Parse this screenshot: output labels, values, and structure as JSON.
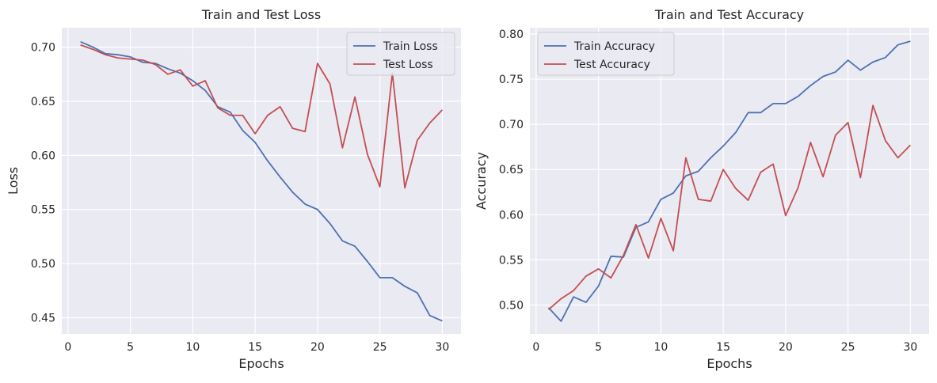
{
  "chart_data": [
    {
      "type": "line",
      "title": "Train and Test Loss",
      "xlabel": "Epochs",
      "ylabel": "Loss",
      "xlim": [
        -0.5,
        31.5
      ],
      "ylim": [
        0.435,
        0.718
      ],
      "xticks": [
        0,
        5,
        10,
        15,
        20,
        25,
        30
      ],
      "yticks": [
        0.45,
        0.5,
        0.55,
        0.6,
        0.65,
        0.7
      ],
      "x": [
        1,
        2,
        3,
        4,
        5,
        6,
        7,
        8,
        9,
        10,
        11,
        12,
        13,
        14,
        15,
        16,
        17,
        18,
        19,
        20,
        21,
        22,
        23,
        24,
        25,
        26,
        27,
        28,
        29,
        30
      ],
      "legend_position": "top-right",
      "series": [
        {
          "name": "Train Loss",
          "color": "#4c72b0",
          "values": [
            0.705,
            0.7,
            0.694,
            0.693,
            0.691,
            0.686,
            0.685,
            0.68,
            0.676,
            0.669,
            0.66,
            0.645,
            0.64,
            0.623,
            0.612,
            0.595,
            0.58,
            0.566,
            0.555,
            0.55,
            0.537,
            0.521,
            0.516,
            0.502,
            0.487,
            0.487,
            0.479,
            0.473,
            0.452,
            0.447
          ]
        },
        {
          "name": "Test Loss",
          "color": "#c44e52",
          "values": [
            0.702,
            0.698,
            0.693,
            0.69,
            0.689,
            0.688,
            0.684,
            0.675,
            0.679,
            0.664,
            0.669,
            0.644,
            0.637,
            0.637,
            0.62,
            0.637,
            0.645,
            0.625,
            0.622,
            0.685,
            0.666,
            0.607,
            0.654,
            0.601,
            0.571,
            0.676,
            0.57,
            0.614,
            0.63,
            0.642
          ]
        }
      ]
    },
    {
      "type": "line",
      "title": "Train and Test Accuracy",
      "xlabel": "Epochs",
      "ylabel": "Accuracy",
      "xlim": [
        -0.5,
        31.5
      ],
      "ylim": [
        0.468,
        0.807
      ],
      "xticks": [
        0,
        5,
        10,
        15,
        20,
        25,
        30
      ],
      "yticks": [
        0.5,
        0.55,
        0.6,
        0.65,
        0.7,
        0.75,
        0.8
      ],
      "x": [
        1,
        2,
        3,
        4,
        5,
        6,
        7,
        8,
        9,
        10,
        11,
        12,
        13,
        14,
        15,
        16,
        17,
        18,
        19,
        20,
        21,
        22,
        23,
        24,
        25,
        26,
        27,
        28,
        29,
        30
      ],
      "legend_position": "top-left",
      "series": [
        {
          "name": "Train Accuracy",
          "color": "#4c72b0",
          "values": [
            0.497,
            0.482,
            0.509,
            0.503,
            0.521,
            0.554,
            0.553,
            0.586,
            0.592,
            0.617,
            0.624,
            0.643,
            0.648,
            0.663,
            0.676,
            0.691,
            0.713,
            0.713,
            0.723,
            0.723,
            0.731,
            0.743,
            0.753,
            0.758,
            0.771,
            0.76,
            0.769,
            0.774,
            0.788,
            0.792
          ]
        },
        {
          "name": "Test Accuracy",
          "color": "#c44e52",
          "values": [
            0.495,
            0.507,
            0.516,
            0.532,
            0.54,
            0.53,
            0.555,
            0.589,
            0.552,
            0.596,
            0.56,
            0.663,
            0.617,
            0.615,
            0.65,
            0.629,
            0.616,
            0.647,
            0.656,
            0.599,
            0.63,
            0.68,
            0.642,
            0.688,
            0.702,
            0.641,
            0.721,
            0.682,
            0.663,
            0.677
          ]
        }
      ]
    }
  ]
}
